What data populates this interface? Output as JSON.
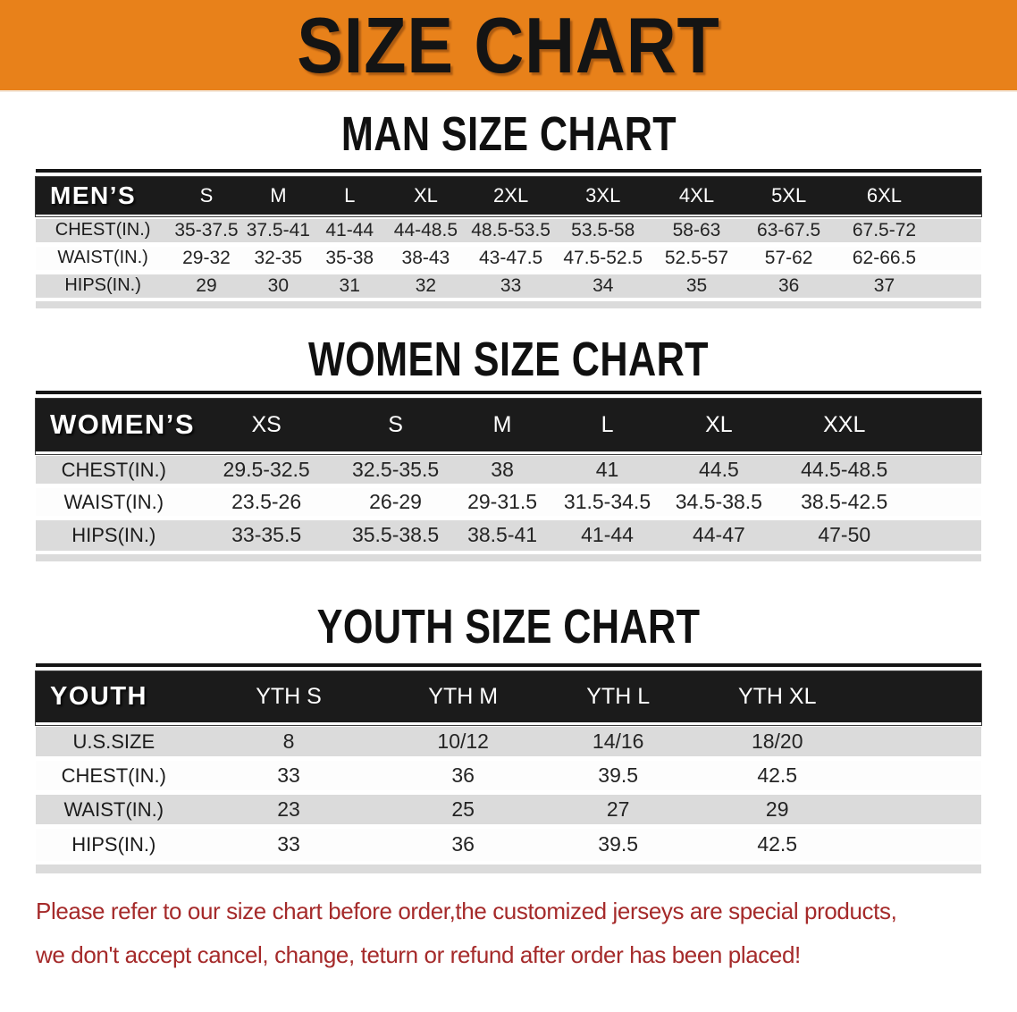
{
  "banner": {
    "title": "SIZE CHART"
  },
  "colors": {
    "banner_bg": "#E8811A",
    "header_bar_bg": "#1B1B1B",
    "row_shade": "#DBDBDB",
    "note_color": "#A52A2A"
  },
  "sections": [
    {
      "heading": "MAN SIZE CHART",
      "table": {
        "corner_label": "MEN’S",
        "columns": [
          "S",
          "M",
          "L",
          "XL",
          "2XL",
          "3XL",
          "4XL",
          "5XL",
          "6XL"
        ],
        "rows": [
          {
            "label": "CHEST(IN.)",
            "values": [
              "35-37.5",
              "37.5-41",
              "41-44",
              "44-48.5",
              "48.5-53.5",
              "53.5-58",
              "58-63",
              "63-67.5",
              "67.5-72"
            ]
          },
          {
            "label": "WAIST(IN.)",
            "values": [
              "29-32",
              "32-35",
              "35-38",
              "38-43",
              "43-47.5",
              "47.5-52.5",
              "52.5-57",
              "57-62",
              "62-66.5"
            ]
          },
          {
            "label": "HIPS(IN.)",
            "values": [
              "29",
              "30",
              "31",
              "32",
              "33",
              "34",
              "35",
              "36",
              "37"
            ]
          }
        ]
      }
    },
    {
      "heading": "WOMEN SIZE CHART",
      "table": {
        "corner_label": "WOMEN’S",
        "columns": [
          "XS",
          "S",
          "M",
          "L",
          "XL",
          "XXL"
        ],
        "rows": [
          {
            "label": "CHEST(IN.)",
            "values": [
              "29.5-32.5",
              "32.5-35.5",
              "38",
              "41",
              "44.5",
              "44.5-48.5"
            ]
          },
          {
            "label": "WAIST(IN.)",
            "values": [
              "23.5-26",
              "26-29",
              "29-31.5",
              "31.5-34.5",
              "34.5-38.5",
              "38.5-42.5"
            ]
          },
          {
            "label": "HIPS(IN.)",
            "values": [
              "33-35.5",
              "35.5-38.5",
              "38.5-41",
              "41-44",
              "44-47",
              "47-50"
            ]
          }
        ]
      }
    },
    {
      "heading": "YOUTH SIZE CHART",
      "table": {
        "corner_label": "YOUTH",
        "columns": [
          "YTH S",
          "YTH M",
          "YTH L",
          "YTH XL"
        ],
        "rows": [
          {
            "label": "U.S.SIZE",
            "values": [
              "8",
              "10/12",
              "14/16",
              "18/20"
            ]
          },
          {
            "label": "CHEST(IN.)",
            "values": [
              "33",
              "36",
              "39.5",
              "42.5"
            ]
          },
          {
            "label": "WAIST(IN.)",
            "values": [
              "23",
              "25",
              "27",
              "29"
            ]
          },
          {
            "label": "HIPS(IN.)",
            "values": [
              "33",
              "36",
              "39.5",
              "42.5"
            ]
          }
        ]
      }
    }
  ],
  "footer_note": {
    "line1": "Please refer to our size chart before order,the customized jerseys are special products,",
    "line2": "we don't accept cancel, change, teturn or refund after order has been placed!"
  }
}
